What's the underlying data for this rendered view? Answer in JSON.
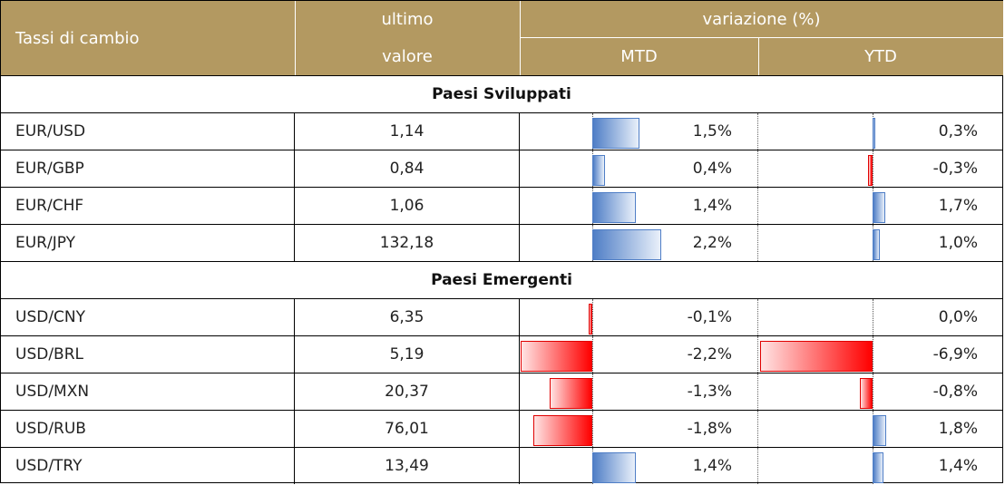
{
  "header": {
    "col_name": "Tassi di cambio",
    "col_last_line1": "ultimo",
    "col_last_line2": "valore",
    "col_change": "variazione (%)",
    "col_mtd": "MTD",
    "col_ytd": "YTD"
  },
  "colors": {
    "header_bg": "#b39961",
    "positive_bar": "#4f7ec6",
    "negative_bar": "#ff0000"
  },
  "bar_scale_max_abs_pct": 6.9,
  "sections": [
    {
      "title": "Paesi Sviluppati",
      "rows": [
        {
          "pair": "EUR/USD",
          "last": "1,14",
          "mtd_label": "1,5%",
          "mtd": 1.5,
          "ytd_label": "0,3%",
          "ytd": 0.3
        },
        {
          "pair": "EUR/GBP",
          "last": "0,84",
          "mtd_label": "0,4%",
          "mtd": 0.4,
          "ytd_label": "-0,3%",
          "ytd": -0.3
        },
        {
          "pair": "EUR/CHF",
          "last": "1,06",
          "mtd_label": "1,4%",
          "mtd": 1.4,
          "ytd_label": "1,7%",
          "ytd": 1.7
        },
        {
          "pair": "EUR/JPY",
          "last": "132,18",
          "mtd_label": "2,2%",
          "mtd": 2.2,
          "ytd_label": "1,0%",
          "ytd": 1.0
        }
      ]
    },
    {
      "title": "Paesi Emergenti",
      "rows": [
        {
          "pair": "USD/CNY",
          "last": "6,35",
          "mtd_label": "-0,1%",
          "mtd": -0.1,
          "ytd_label": "0,0%",
          "ytd": 0.0
        },
        {
          "pair": "USD/BRL",
          "last": "5,19",
          "mtd_label": "-2,2%",
          "mtd": -2.2,
          "ytd_label": "-6,9%",
          "ytd": -6.9
        },
        {
          "pair": "USD/MXN",
          "last": "20,37",
          "mtd_label": "-1,3%",
          "mtd": -1.3,
          "ytd_label": "-0,8%",
          "ytd": -0.8
        },
        {
          "pair": "USD/RUB",
          "last": "76,01",
          "mtd_label": "-1,8%",
          "mtd": -1.8,
          "ytd_label": "1,8%",
          "ytd": 1.8
        },
        {
          "pair": "USD/TRY",
          "last": "13,49",
          "mtd_label": "1,4%",
          "mtd": 1.4,
          "ytd_label": "1,4%",
          "ytd": 1.4
        }
      ]
    }
  ]
}
